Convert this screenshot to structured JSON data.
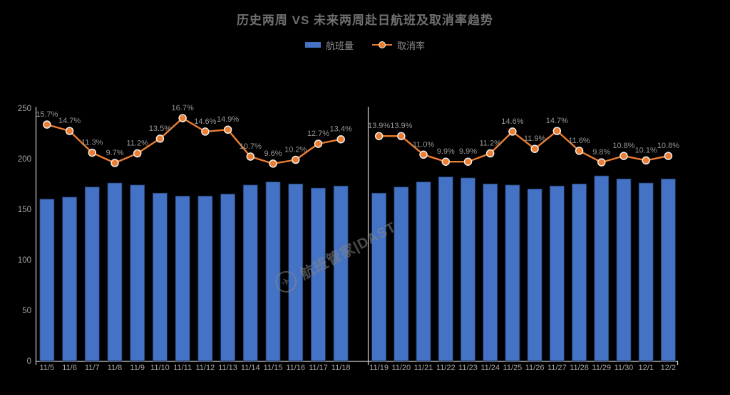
{
  "title": "历史两周 VS 未来两周赴日航班及取消率趋势",
  "legend": {
    "items": [
      {
        "label": "航班量",
        "type": "bar",
        "color": "#4472c4"
      },
      {
        "label": "取消率",
        "type": "line",
        "color": "#ed7d31"
      }
    ]
  },
  "watermark": {
    "text": "航班管家|DAST",
    "icon": "paper-plane-icon"
  },
  "colors": {
    "background": "#000000",
    "bar": "#4472c4",
    "bar_border": "#1f3864",
    "line": "#ed7d31",
    "marker_fill": "#ed7d31",
    "marker_ring": "#efefef",
    "axis": "#cfcfcf",
    "axis_label": "#a6a6a6",
    "data_label": "#969696"
  },
  "chart_data": [
    {
      "type": "bar",
      "panel": "历史两周",
      "categories": [
        "11/5",
        "11/6",
        "11/7",
        "11/8",
        "11/9",
        "11/10",
        "11/11",
        "11/12",
        "11/13",
        "11/14",
        "11/15",
        "11/16",
        "11/17",
        "11/18"
      ],
      "series": [
        {
          "name": "航班量",
          "type": "bar",
          "values": [
            160,
            162,
            172,
            176,
            174,
            166,
            163,
            163,
            165,
            174,
            177,
            175,
            171,
            173
          ]
        },
        {
          "name": "取消率",
          "type": "line",
          "unit": "%",
          "values": [
            15.7,
            14.7,
            11.3,
            9.7,
            11.2,
            13.5,
            16.7,
            14.6,
            14.9,
            10.7,
            9.6,
            10.2,
            12.7,
            13.4
          ]
        }
      ],
      "ylim": [
        0,
        250
      ],
      "yticks": [
        0,
        50,
        100,
        150,
        200,
        250
      ],
      "grid": false,
      "legend_position": "top"
    },
    {
      "type": "bar",
      "panel": "未来两周",
      "categories": [
        "11/19",
        "11/20",
        "11/21",
        "11/22",
        "11/23",
        "11/24",
        "11/25",
        "11/26",
        "11/27",
        "11/28",
        "11/29",
        "11/30",
        "12/1",
        "12/2"
      ],
      "series": [
        {
          "name": "航班量",
          "type": "bar",
          "values": [
            166,
            172,
            177,
            182,
            181,
            175,
            174,
            170,
            173,
            175,
            183,
            180,
            176,
            180
          ]
        },
        {
          "name": "取消率",
          "type": "line",
          "unit": "%",
          "values": [
            13.9,
            13.9,
            11.0,
            9.9,
            9.9,
            11.2,
            14.6,
            11.9,
            14.7,
            11.6,
            9.8,
            10.8,
            10.1,
            10.8
          ]
        }
      ],
      "ylim": [
        0,
        250
      ],
      "yticks": [
        0,
        50,
        100,
        150,
        200,
        250
      ],
      "grid": false,
      "legend_position": "top"
    }
  ]
}
